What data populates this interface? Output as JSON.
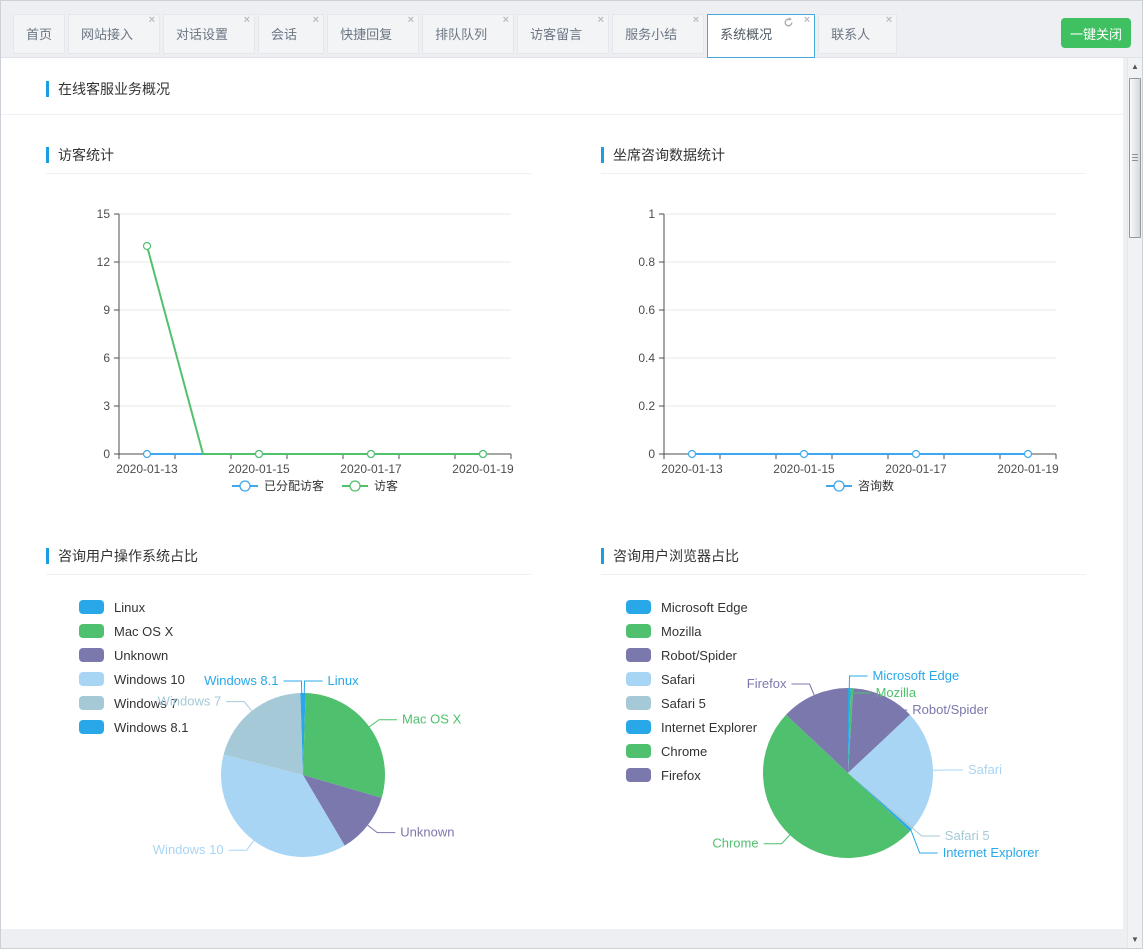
{
  "icons": {
    "close_tab": "×",
    "refresh": "refresh-arrow",
    "scroll_up": "▲",
    "scroll_down": "▼"
  },
  "tab_bar": {
    "tabs": [
      {
        "label": "首页",
        "closable": false,
        "active": false
      },
      {
        "label": "网站接入",
        "closable": true,
        "active": false
      },
      {
        "label": "对话设置",
        "closable": true,
        "active": false
      },
      {
        "label": "会话",
        "closable": true,
        "active": false
      },
      {
        "label": "快捷回复",
        "closable": true,
        "active": false
      },
      {
        "label": "排队队列",
        "closable": true,
        "active": false
      },
      {
        "label": "访客留言",
        "closable": true,
        "active": false
      },
      {
        "label": "服务小结",
        "closable": true,
        "active": false
      },
      {
        "label": "系统概况",
        "closable": true,
        "active": true,
        "refreshable": true
      },
      {
        "label": "联系人",
        "closable": true,
        "active": false
      }
    ],
    "close_all_label": "一键关闭"
  },
  "overview": {
    "title": "在线客服业务概况"
  },
  "colors": {
    "accent_blue": "#1b9de2",
    "active_tab_border": "#46a9da",
    "close_all_green": "#3fc061",
    "axis": "#4d4d4d",
    "grid": "#e8e8e8",
    "palette": [
      "#28a8e9",
      "#4fc06e",
      "#7b78ad",
      "#a9d5f5",
      "#a5c9d6"
    ]
  },
  "sections": {
    "visitor_stats": {
      "title": "访客统计",
      "chart_data": {
        "type": "line",
        "x": [
          "2020-01-13",
          "2020-01-14",
          "2020-01-15",
          "2020-01-16",
          "2020-01-17",
          "2020-01-18",
          "2020-01-19"
        ],
        "x_tick_labels": [
          "2020-01-13",
          "2020-01-15",
          "2020-01-17",
          "2020-01-19"
        ],
        "series": [
          {
            "name": "已分配访客",
            "color": "#3fa7ee",
            "values": [
              0,
              0,
              0,
              0,
              0,
              0,
              0
            ]
          },
          {
            "name": "访客",
            "color": "#52c16d",
            "values": [
              13,
              0,
              0,
              0,
              0,
              0,
              0
            ]
          }
        ],
        "ylim": [
          0,
          15
        ],
        "yticks": [
          0,
          3,
          6,
          9,
          12,
          15
        ],
        "grid": true,
        "legend_position": "bottom"
      }
    },
    "agent_stats": {
      "title": "坐席咨询数据统计",
      "chart_data": {
        "type": "line",
        "x": [
          "2020-01-13",
          "2020-01-14",
          "2020-01-15",
          "2020-01-16",
          "2020-01-17",
          "2020-01-18",
          "2020-01-19"
        ],
        "x_tick_labels": [
          "2020-01-13",
          "2020-01-15",
          "2020-01-17",
          "2020-01-19"
        ],
        "series": [
          {
            "name": "咨询数",
            "color": "#3fa7ee",
            "values": [
              0,
              0,
              0,
              0,
              0,
              0,
              0
            ]
          }
        ],
        "ylim": [
          0,
          1
        ],
        "yticks": [
          0,
          0.2,
          0.4,
          0.6,
          0.8,
          1
        ],
        "grid": true,
        "legend_position": "bottom"
      }
    },
    "os_share": {
      "title": "咨询用户操作系统占比",
      "chart_data": {
        "type": "pie",
        "value_unit": "percent",
        "legend_position": "left",
        "items": [
          {
            "name": "Linux",
            "value": 0.5,
            "color": "#28a8e9"
          },
          {
            "name": "Mac OS X",
            "value": 29,
            "color": "#4fc06e"
          },
          {
            "name": "Unknown",
            "value": 12,
            "color": "#7b78ad"
          },
          {
            "name": "Windows 10",
            "value": 37.5,
            "color": "#a9d5f5"
          },
          {
            "name": "Windows 7",
            "value": 20.5,
            "color": "#a5c9d6"
          },
          {
            "name": "Windows 8.1",
            "value": 0.5,
            "color": "#28a8e9"
          }
        ]
      }
    },
    "browser_share": {
      "title": "咨询用户浏览器占比",
      "chart_data": {
        "type": "pie",
        "value_unit": "percent",
        "legend_position": "left",
        "items": [
          {
            "name": "Microsoft Edge",
            "value": 0.5,
            "color": "#28a8e9"
          },
          {
            "name": "Mozilla",
            "value": 0.5,
            "color": "#4fc06e"
          },
          {
            "name": "Robot/Spider",
            "value": 12,
            "color": "#7b78ad"
          },
          {
            "name": "Safari",
            "value": 23,
            "color": "#a9d5f5"
          },
          {
            "name": "Safari 5",
            "value": 0.5,
            "color": "#a5c9d6"
          },
          {
            "name": "Internet Explorer",
            "value": 0.5,
            "color": "#28a8e9"
          },
          {
            "name": "Chrome",
            "value": 50,
            "color": "#4fc06e"
          },
          {
            "name": "Firefox",
            "value": 13,
            "color": "#7b78ad"
          }
        ]
      }
    }
  }
}
